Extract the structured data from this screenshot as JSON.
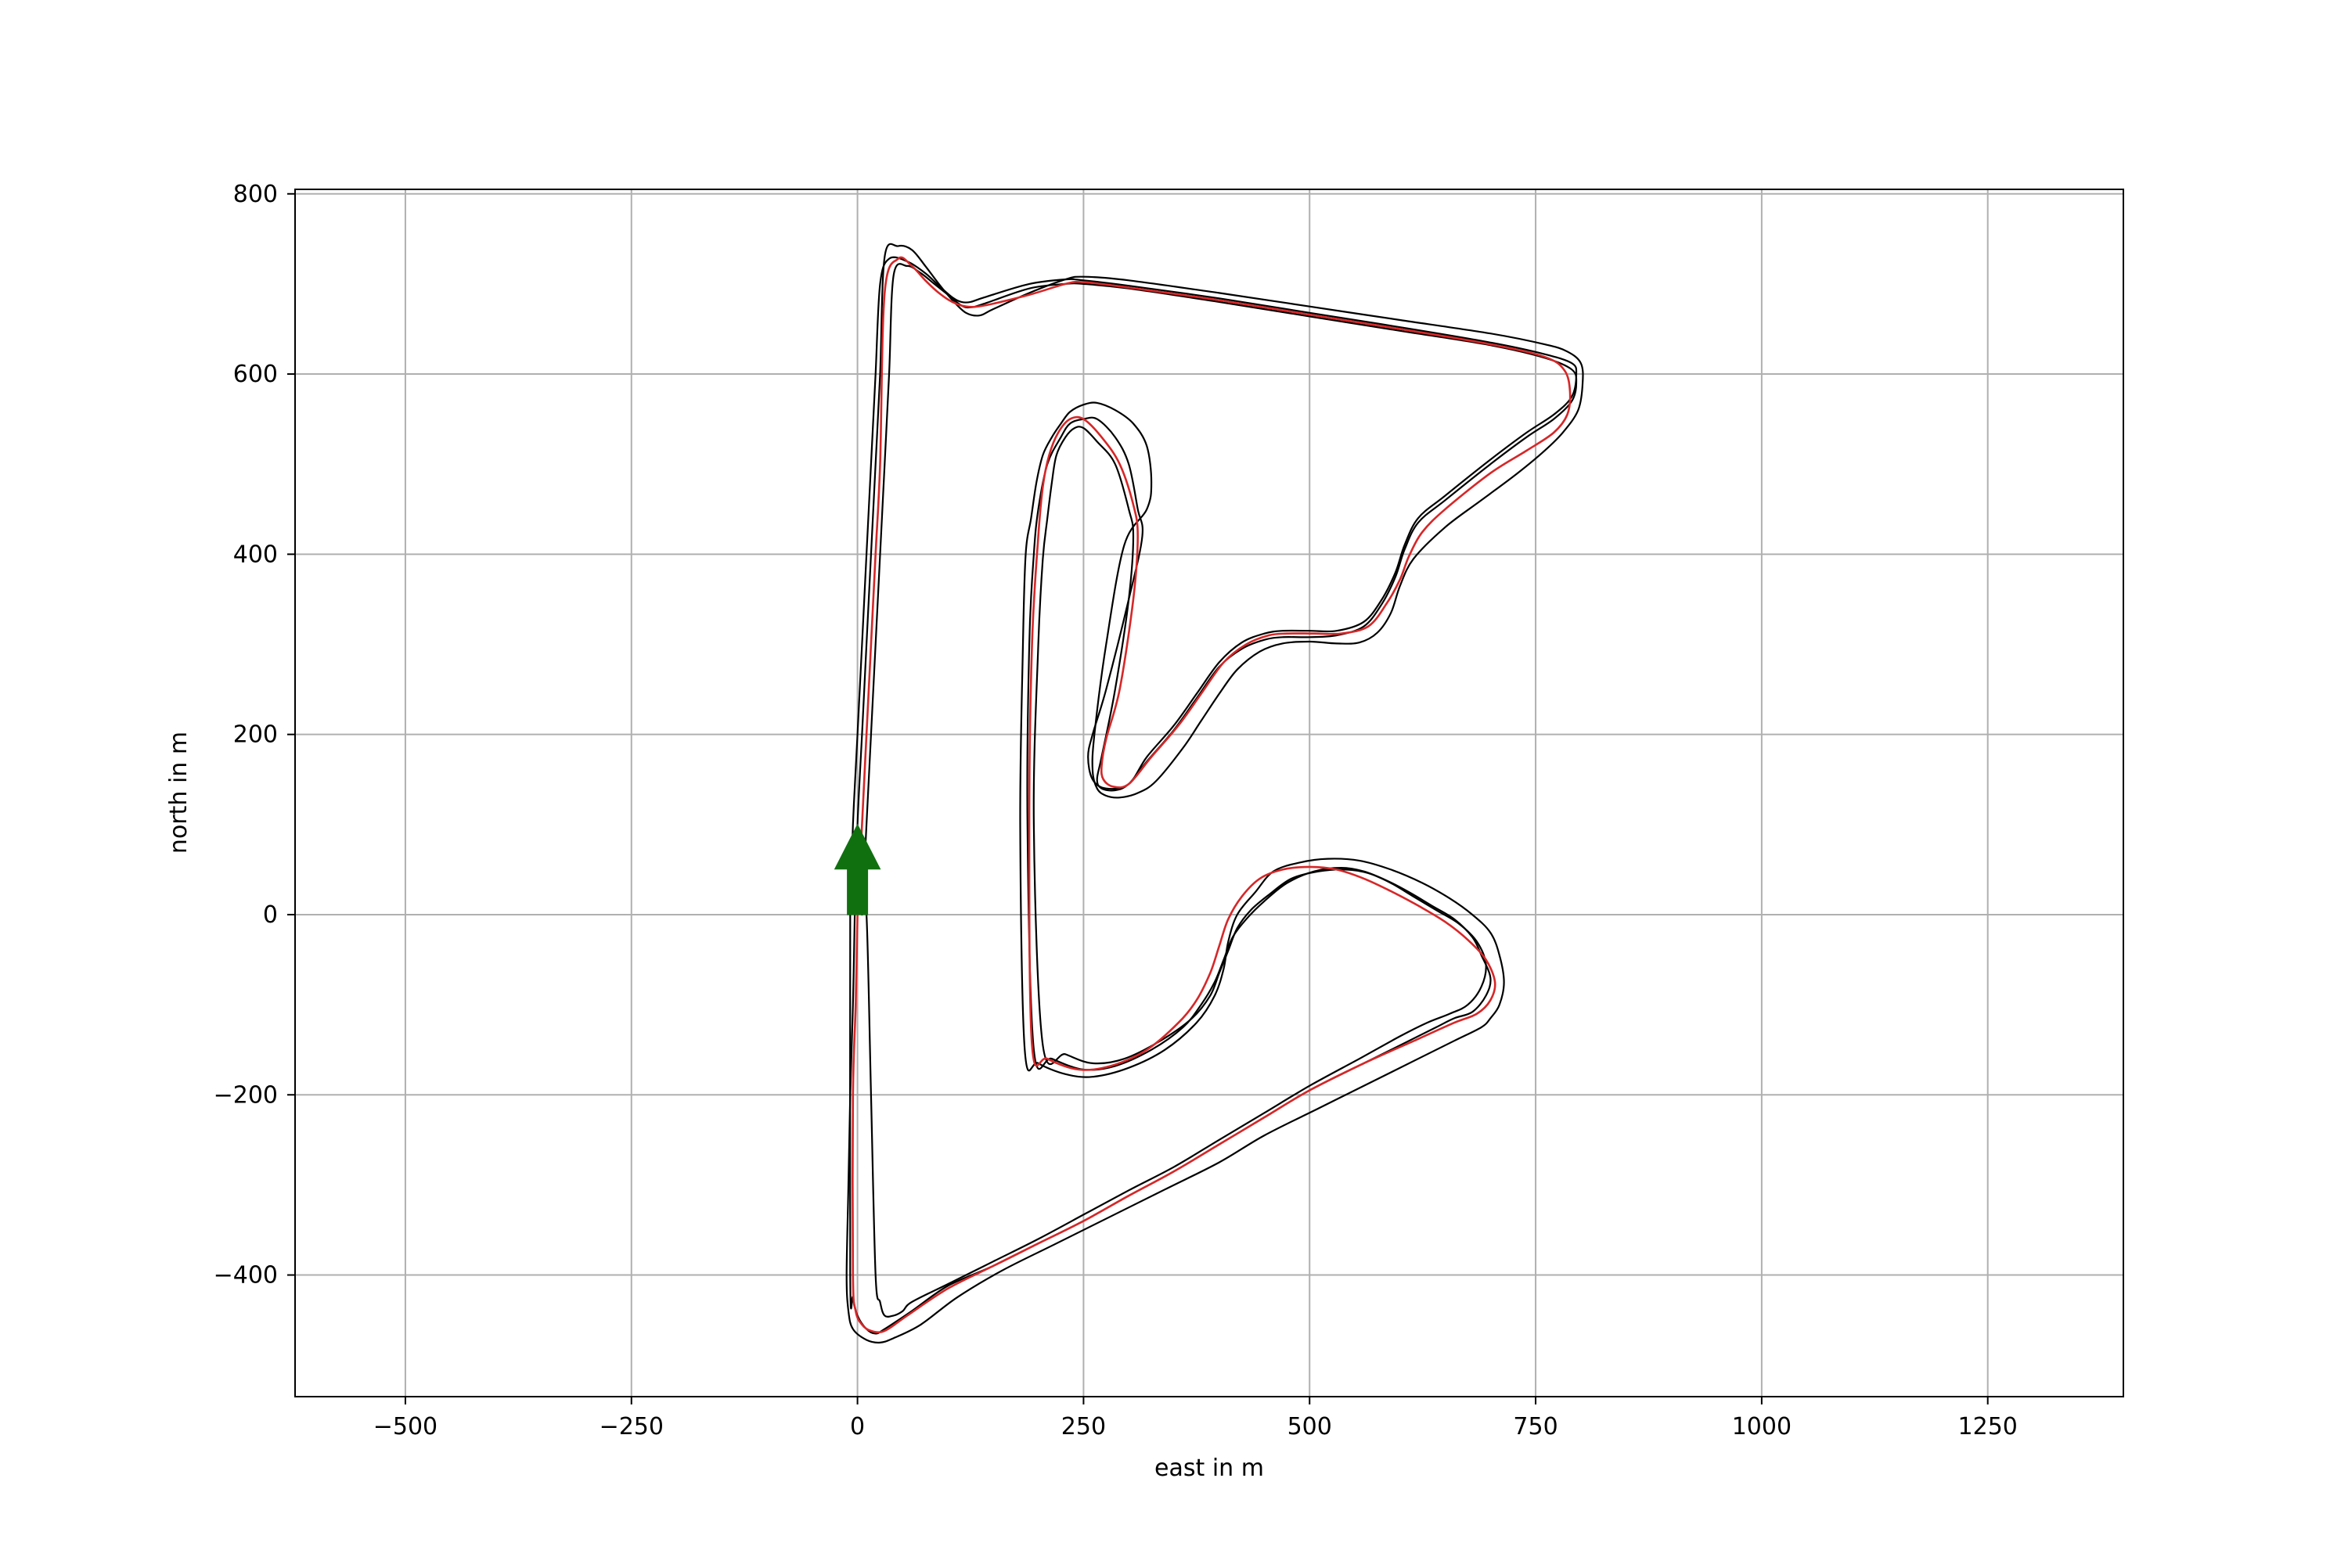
{
  "chart_data": {
    "type": "line",
    "title": "",
    "xlabel": "east in m",
    "ylabel": "north in m",
    "xlim": [
      -622,
      1400
    ],
    "ylim": [
      -535,
      805
    ],
    "xticks": [
      -500,
      -250,
      0,
      250,
      500,
      750,
      1000,
      1250
    ],
    "xtick_labels": [
      "−500",
      "−250",
      "0",
      "250",
      "500",
      "750",
      "1000",
      "1250"
    ],
    "yticks": [
      -400,
      -200,
      0,
      200,
      400,
      600,
      800
    ],
    "ytick_labels": [
      "−400",
      "−200",
      "0",
      "200",
      "400",
      "600",
      "800"
    ],
    "grid": true,
    "legend": null,
    "colors": {
      "boundary": "#000000",
      "centerline": "#333333",
      "trajectory": "#d62728",
      "arrow": "#107010",
      "grid": "#b0b0b0"
    },
    "start_arrow": {
      "x": 0,
      "y": 0,
      "dx": 0,
      "dy": 100
    },
    "series": [
      {
        "role": "left-boundary",
        "style": "solid",
        "x": [
          -8,
          -5,
          0,
          5,
          10,
          15,
          20,
          25,
          35,
          55,
          75,
          90,
          105,
          115,
          125,
          140,
          190,
          230,
          250,
          300,
          400,
          500,
          600,
          700,
          760,
          790,
          795,
          790,
          770,
          740,
          700,
          650,
          620,
          605,
          595,
          580,
          560,
          530,
          500,
          470,
          450,
          425,
          400,
          375,
          350,
          320,
          300,
          275,
          260,
          255,
          260,
          275,
          300,
          315,
          310,
          300,
          285,
          265,
          250,
          235,
          225,
          210,
          200,
          195,
          190,
          188,
          195,
          215,
          250,
          285,
          325,
          360,
          380,
          395,
          405,
          415,
          430,
          450,
          475,
          505,
          535,
          560,
          585,
          610,
          635,
          660,
          680,
          690,
          700,
          695,
          680,
          660,
          640,
          610,
          560,
          500,
          450,
          400,
          350,
          300,
          250,
          200,
          150,
          100,
          60,
          30,
          20,
          10,
          0,
          -5,
          -8,
          -8
        ],
        "y": [
          0,
          100,
          200,
          300,
          400,
          500,
          600,
          700,
          728,
          725,
          712,
          698,
          685,
          680,
          680,
          685,
          700,
          705,
          704,
          698,
          684,
          668,
          652,
          635,
          622,
          612,
          600,
          575,
          555,
          535,
          505,
          465,
          440,
          410,
          380,
          350,
          325,
          315,
          315,
          315,
          312,
          302,
          280,
          245,
          210,
          175,
          145,
          140,
          150,
          175,
          200,
          250,
          350,
          420,
          450,
          500,
          530,
          550,
          550,
          545,
          530,
          500,
          450,
          400,
          300,
          100,
          -150,
          -160,
          -172,
          -168,
          -150,
          -125,
          -100,
          -75,
          -50,
          -25,
          -5,
          15,
          35,
          48,
          52,
          48,
          38,
          25,
          10,
          -5,
          -25,
          -45,
          -70,
          -90,
          -108,
          -115,
          -125,
          -140,
          -165,
          -195,
          -225,
          -255,
          -285,
          -312,
          -340,
          -365,
          -390,
          -412,
          -440,
          -460,
          -465,
          -460,
          -445,
          -425,
          -400,
          0
        ]
      },
      {
        "role": "right-boundary",
        "style": "solid",
        "x": [
          5,
          10,
          15,
          20,
          25,
          30,
          35,
          40,
          55,
          70,
          85,
          100,
          115,
          125,
          140,
          190,
          230,
          250,
          300,
          400,
          500,
          600,
          700,
          760,
          790,
          795,
          790,
          770,
          740,
          700,
          650,
          620,
          605,
          595,
          580,
          560,
          530,
          500,
          470,
          450,
          425,
          400,
          375,
          350,
          320,
          300,
          285,
          270,
          265,
          270,
          285,
          300,
          305,
          300,
          285,
          265,
          250,
          240,
          230,
          220,
          215,
          210,
          205,
          200,
          195,
          205,
          230,
          260,
          295,
          335,
          370,
          390,
          400,
          410,
          420,
          435,
          455,
          480,
          510,
          540,
          565,
          590,
          615,
          640,
          665,
          685,
          695,
          690,
          675,
          655,
          630,
          600,
          555,
          500,
          450,
          400,
          350,
          300,
          250,
          200,
          150,
          100,
          60,
          50,
          40,
          30,
          25,
          20,
          15,
          10,
          5
        ],
        "y": [
          0,
          100,
          200,
          300,
          400,
          500,
          600,
          710,
          720,
          712,
          700,
          688,
          676,
          674,
          678,
          695,
          700,
          700,
          695,
          680,
          664,
          648,
          632,
          618,
          605,
          590,
          570,
          550,
          530,
          500,
          460,
          435,
          405,
          375,
          345,
          320,
          310,
          308,
          308,
          305,
          295,
          275,
          240,
          205,
          170,
          145,
          138,
          140,
          150,
          175,
          250,
          350,
          420,
          450,
          500,
          525,
          540,
          540,
          530,
          510,
          480,
          440,
          395,
          300,
          100,
          -145,
          -155,
          -165,
          -160,
          -140,
          -115,
          -90,
          -65,
          -40,
          -15,
          5,
          22,
          40,
          48,
          50,
          46,
          35,
          20,
          5,
          -10,
          -30,
          -55,
          -80,
          -100,
          -110,
          -120,
          -135,
          -160,
          -190,
          -220,
          -250,
          -280,
          -306,
          -333,
          -360,
          -385,
          -410,
          -430,
          -440,
          -445,
          -445,
          -430,
          -400,
          -200,
          0,
          0
        ]
      },
      {
        "role": "outer-boundary",
        "style": "solid",
        "x": [
          -3,
          0,
          5,
          10,
          15,
          20,
          25,
          30,
          45,
          60,
          75,
          90,
          105,
          120,
          135,
          150,
          190,
          230,
          250,
          300,
          400,
          500,
          600,
          700,
          760,
          785,
          800,
          802,
          797,
          780,
          760,
          730,
          690,
          650,
          615,
          600,
          590,
          575,
          555,
          530,
          500,
          470,
          445,
          420,
          400,
          380,
          360,
          330,
          310,
          290,
          275,
          265,
          260,
          262,
          275,
          295,
          320,
          325,
          320,
          305,
          285,
          265,
          250,
          235,
          225,
          215,
          205,
          198,
          192,
          186,
          183,
          180,
          185,
          200,
          230,
          260,
          300,
          340,
          375,
          395,
          405,
          410,
          420,
          440,
          460,
          490,
          520,
          555,
          590,
          625,
          655,
          680,
          700,
          710,
          715,
          710,
          700,
          690,
          660,
          620,
          570,
          510,
          450,
          400,
          340,
          280,
          220,
          160,
          110,
          70,
          40,
          25,
          10,
          -5,
          -10,
          -12,
          -10,
          -8,
          -5,
          -3
        ],
        "y": [
          0,
          100,
          200,
          300,
          400,
          500,
          600,
          730,
          742,
          738,
          720,
          700,
          682,
          668,
          665,
          672,
          690,
          705,
          708,
          704,
          690,
          675,
          660,
          645,
          633,
          625,
          612,
          590,
          560,
          535,
          515,
          490,
          460,
          430,
          395,
          365,
          335,
          313,
          302,
          301,
          303,
          301,
          292,
          272,
          245,
          215,
          185,
          148,
          135,
          130,
          132,
          140,
          160,
          200,
          300,
          410,
          450,
          480,
          520,
          545,
          560,
          568,
          566,
          558,
          545,
          530,
          510,
          480,
          440,
          400,
          300,
          100,
          -150,
          -165,
          -177,
          -180,
          -170,
          -150,
          -120,
          -90,
          -60,
          -30,
          0,
          25,
          48,
          58,
          62,
          60,
          50,
          35,
          18,
          0,
          -20,
          -45,
          -75,
          -100,
          -115,
          -125,
          -140,
          -160,
          -185,
          -215,
          -245,
          -275,
          -305,
          -335,
          -365,
          -395,
          -425,
          -455,
          -470,
          -475,
          -472,
          -460,
          -440,
          -400,
          -300,
          -200,
          -100,
          0
        ]
      },
      {
        "role": "trajectory",
        "style": "solid",
        "x": [
          0,
          5,
          10,
          15,
          20,
          25,
          30,
          45,
          60,
          75,
          90,
          105,
          120,
          140,
          190,
          230,
          250,
          300,
          400,
          500,
          600,
          700,
          760,
          782,
          788,
          785,
          770,
          740,
          700,
          650,
          625,
          610,
          600,
          585,
          565,
          535,
          505,
          475,
          455,
          430,
          405,
          380,
          355,
          325,
          300,
          283,
          272,
          270,
          275,
          290,
          305,
          310,
          305,
          290,
          270,
          250,
          235,
          222,
          212,
          205,
          200,
          193,
          190,
          193,
          210,
          245,
          280,
          320,
          355,
          375,
          390,
          400,
          410,
          425,
          445,
          470,
          500,
          530,
          560,
          590,
          620,
          650,
          675,
          695,
          705,
          700,
          685,
          660,
          620,
          560,
          500,
          450,
          400,
          350,
          300,
          250,
          200,
          150,
          100,
          55,
          30,
          15,
          5,
          -2,
          -5,
          -5,
          -2,
          0
        ],
        "y": [
          0,
          100,
          200,
          300,
          400,
          500,
          690,
          728,
          720,
          704,
          690,
          680,
          675,
          676,
          688,
          700,
          702,
          696,
          682,
          666,
          650,
          633,
          619,
          604,
          580,
          555,
          535,
          515,
          490,
          450,
          425,
          398,
          372,
          345,
          320,
          312,
          312,
          312,
          310,
          300,
          280,
          245,
          210,
          175,
          145,
          142,
          150,
          165,
          195,
          250,
          350,
          420,
          455,
          500,
          530,
          550,
          550,
          535,
          510,
          475,
          420,
          300,
          100,
          -145,
          -160,
          -172,
          -168,
          -150,
          -120,
          -95,
          -65,
          -35,
          -5,
          20,
          40,
          50,
          53,
          50,
          40,
          26,
          10,
          -8,
          -28,
          -50,
          -75,
          -95,
          -110,
          -120,
          -138,
          -165,
          -195,
          -225,
          -255,
          -285,
          -312,
          -340,
          -365,
          -390,
          -415,
          -445,
          -462,
          -462,
          -455,
          -440,
          -400,
          -200,
          -100,
          0
        ]
      }
    ]
  }
}
